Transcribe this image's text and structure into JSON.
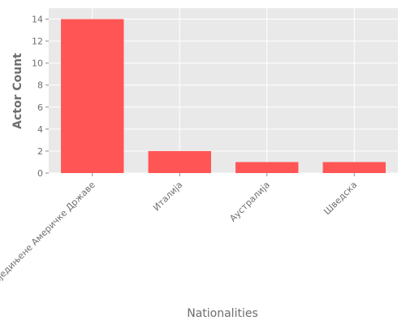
{
  "chart_data": {
    "type": "bar",
    "title": "",
    "xlabel": "Nationalities",
    "ylabel": "Actor Count",
    "categories": [
      "Сједињене Америчке Државе",
      "Италија",
      "Аустралија",
      "Шведска"
    ],
    "values": [
      14,
      2,
      1,
      1
    ],
    "ylim": [
      0,
      15
    ],
    "yticks": [
      0,
      2,
      4,
      6,
      8,
      10,
      12,
      14
    ],
    "grid": true,
    "bar_color": "#ff5555",
    "background_color": "#e9e9e9"
  }
}
